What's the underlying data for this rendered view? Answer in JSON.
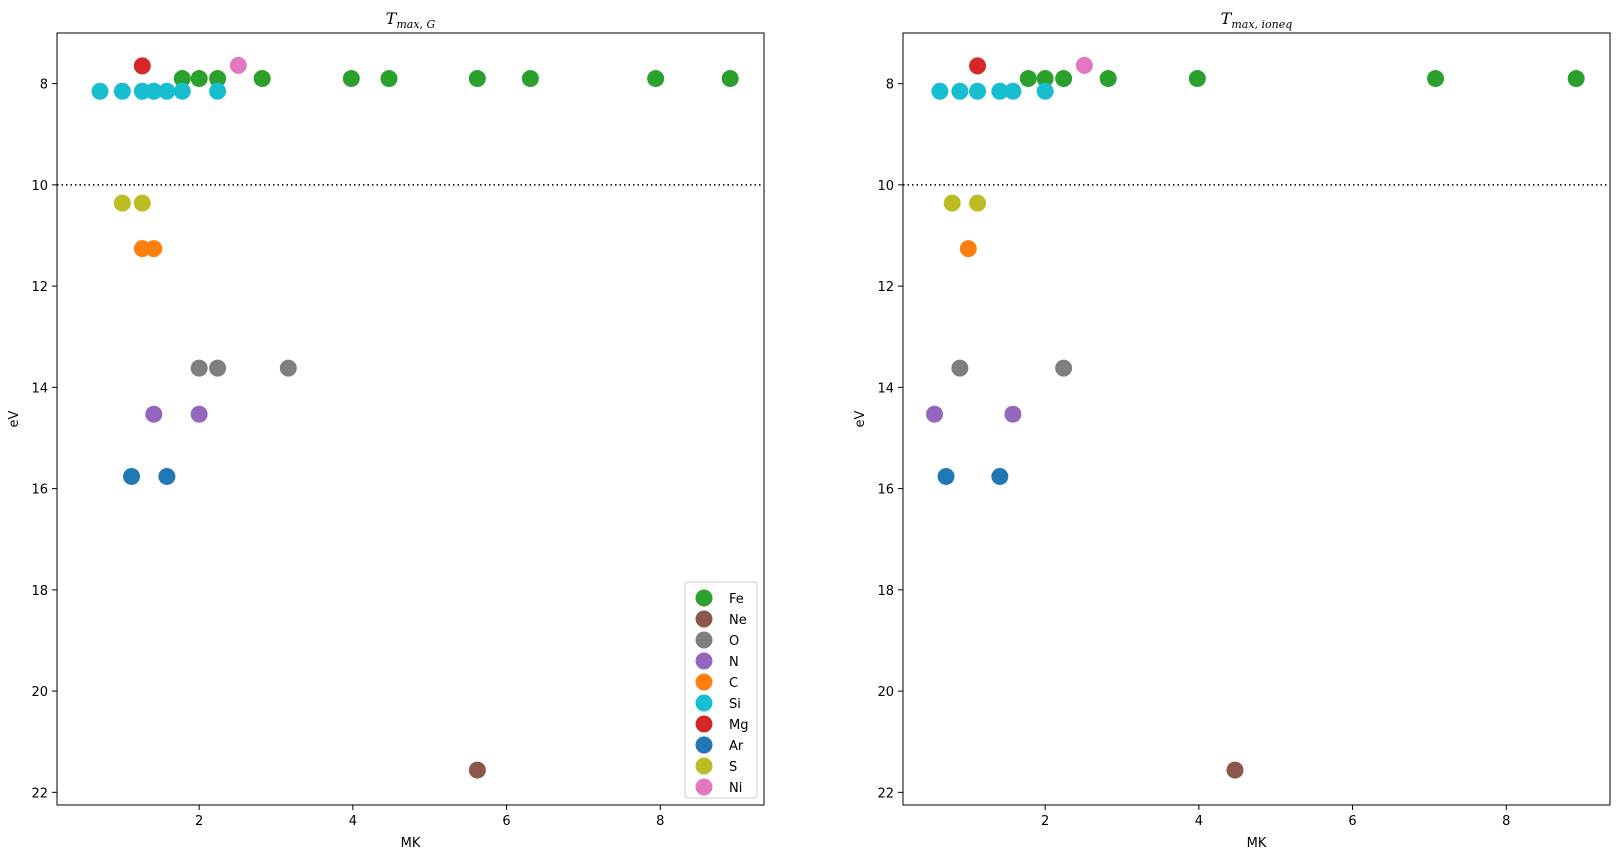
{
  "chart_data": [
    {
      "type": "scatter",
      "title": {
        "main": "T",
        "sub": "max, G"
      },
      "xlabel": "MK",
      "ylabel": "eV",
      "xlim": [
        0.15,
        9.35
      ],
      "ylim": [
        22.25,
        7.0
      ],
      "y_inverted": true,
      "xticks": [
        2,
        4,
        6,
        8
      ],
      "yticks": [
        8,
        10,
        12,
        14,
        16,
        18,
        20,
        22
      ],
      "reference_line": {
        "y": 10,
        "style": "dotted"
      },
      "legend_location": "lower-right",
      "series": [
        {
          "name": "Fe",
          "color": "#2ca02c",
          "points": [
            [
              1.78,
              7.9
            ],
            [
              2.0,
              7.9
            ],
            [
              2.24,
              7.9
            ],
            [
              2.82,
              7.9
            ],
            [
              3.98,
              7.9
            ],
            [
              4.47,
              7.9
            ],
            [
              5.62,
              7.9
            ],
            [
              6.31,
              7.9
            ],
            [
              7.94,
              7.9
            ],
            [
              8.91,
              7.9
            ]
          ]
        },
        {
          "name": "Ne",
          "color": "#8c564b",
          "points": [
            [
              5.62,
              21.56
            ]
          ]
        },
        {
          "name": "O",
          "color": "#7f7f7f",
          "points": [
            [
              2.0,
              13.62
            ],
            [
              2.24,
              13.62
            ],
            [
              3.16,
              13.62
            ]
          ]
        },
        {
          "name": "N",
          "color": "#9467bd",
          "points": [
            [
              1.41,
              14.53
            ],
            [
              2.0,
              14.53
            ]
          ]
        },
        {
          "name": "C",
          "color": "#ff7f0e",
          "points": [
            [
              1.26,
              11.26
            ],
            [
              1.41,
              11.26
            ]
          ]
        },
        {
          "name": "Si",
          "color": "#17becf",
          "points": [
            [
              0.71,
              8.15
            ],
            [
              1.0,
              8.15
            ],
            [
              1.26,
              8.15
            ],
            [
              1.41,
              8.15
            ],
            [
              1.58,
              8.15
            ],
            [
              1.78,
              8.15
            ],
            [
              2.24,
              8.15
            ]
          ]
        },
        {
          "name": "Mg",
          "color": "#d62728",
          "points": [
            [
              1.26,
              7.65
            ]
          ]
        },
        {
          "name": "Ar",
          "color": "#1f77b4",
          "points": [
            [
              1.12,
              15.76
            ],
            [
              1.58,
              15.76
            ]
          ]
        },
        {
          "name": "S",
          "color": "#bcbd22",
          "points": [
            [
              1.0,
              10.36
            ],
            [
              1.26,
              10.36
            ]
          ]
        },
        {
          "name": "Ni",
          "color": "#e377c2",
          "points": [
            [
              2.51,
              7.64
            ]
          ]
        }
      ]
    },
    {
      "type": "scatter",
      "title": {
        "main": "T",
        "sub": "max, ioneq"
      },
      "xlabel": "MK",
      "ylabel": "eV",
      "xlim": [
        0.15,
        9.35
      ],
      "ylim": [
        22.25,
        7.0
      ],
      "y_inverted": true,
      "xticks": [
        2,
        4,
        6,
        8
      ],
      "yticks": [
        8,
        10,
        12,
        14,
        16,
        18,
        20,
        22
      ],
      "reference_line": {
        "y": 10,
        "style": "dotted"
      },
      "series": [
        {
          "name": "Fe",
          "color": "#2ca02c",
          "points": [
            [
              1.78,
              7.9
            ],
            [
              2.0,
              7.9
            ],
            [
              2.24,
              7.9
            ],
            [
              2.82,
              7.9
            ],
            [
              3.98,
              7.9
            ],
            [
              7.08,
              7.9
            ],
            [
              8.91,
              7.9
            ]
          ]
        },
        {
          "name": "Ne",
          "color": "#8c564b",
          "points": [
            [
              4.47,
              21.56
            ]
          ]
        },
        {
          "name": "O",
          "color": "#7f7f7f",
          "points": [
            [
              0.89,
              13.62
            ],
            [
              2.24,
              13.62
            ]
          ]
        },
        {
          "name": "N",
          "color": "#9467bd",
          "points": [
            [
              0.56,
              14.53
            ],
            [
              1.58,
              14.53
            ]
          ]
        },
        {
          "name": "C",
          "color": "#ff7f0e",
          "points": [
            [
              1.0,
              11.26
            ]
          ]
        },
        {
          "name": "Si",
          "color": "#17becf",
          "points": [
            [
              0.63,
              8.15
            ],
            [
              0.89,
              8.15
            ],
            [
              1.12,
              8.15
            ],
            [
              1.41,
              8.15
            ],
            [
              1.58,
              8.15
            ],
            [
              2.0,
              8.15
            ]
          ]
        },
        {
          "name": "Mg",
          "color": "#d62728",
          "points": [
            [
              1.12,
              7.65
            ]
          ]
        },
        {
          "name": "Ar",
          "color": "#1f77b4",
          "points": [
            [
              0.71,
              15.76
            ],
            [
              1.41,
              15.76
            ]
          ]
        },
        {
          "name": "S",
          "color": "#bcbd22",
          "points": [
            [
              0.79,
              10.36
            ],
            [
              1.12,
              10.36
            ]
          ]
        },
        {
          "name": "Ni",
          "color": "#e377c2",
          "points": [
            [
              2.51,
              7.64
            ]
          ]
        }
      ]
    }
  ]
}
